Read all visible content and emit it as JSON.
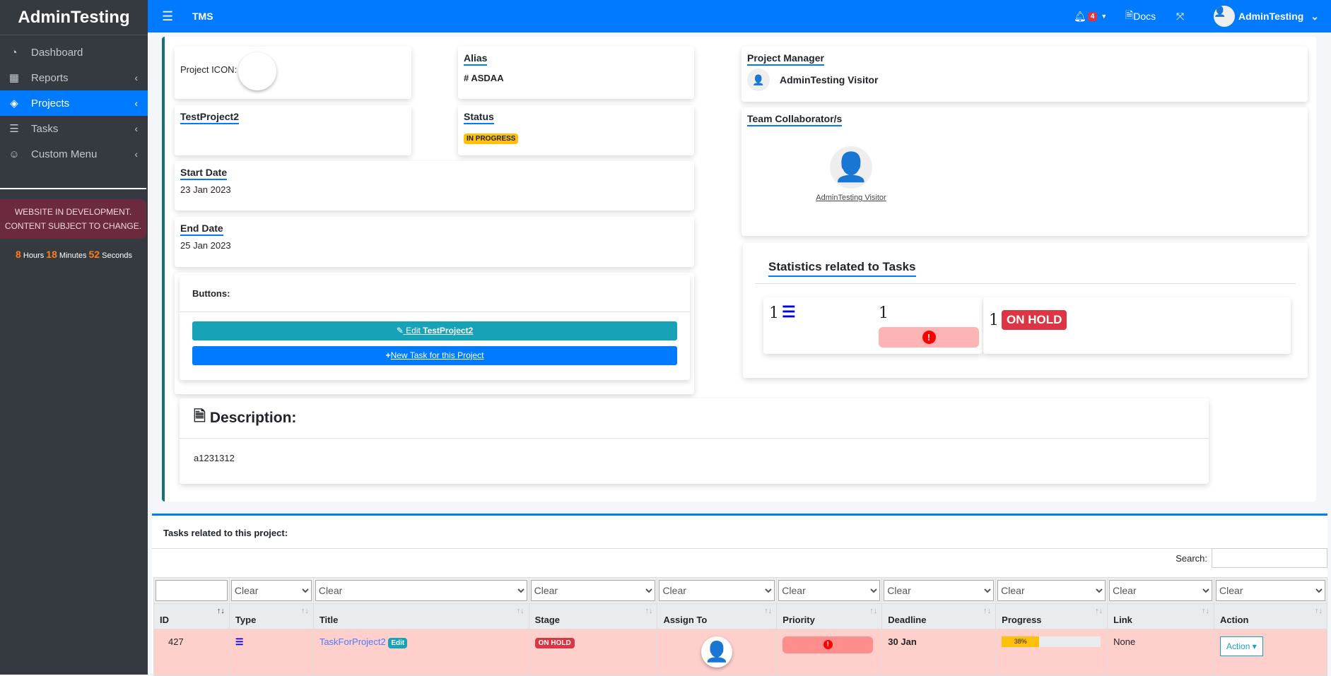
{
  "sidebar": {
    "brand": "AdminTesting",
    "items": [
      {
        "label": "Dashboard",
        "icon": "tachometer-icon"
      },
      {
        "label": "Reports",
        "icon": "table-icon"
      },
      {
        "label": "Projects",
        "icon": "layers-icon",
        "active": true
      },
      {
        "label": "Tasks",
        "icon": "tasks-icon"
      },
      {
        "label": "Custom Menu",
        "icon": "smile-icon"
      }
    ],
    "notice": "WEBSITE IN DEVELOPMENT. CONTENT SUBJECT TO CHANGE.",
    "timer": {
      "hours": "8",
      "hours_label": "Hours",
      "minutes": "18",
      "minutes_label": "Minutes",
      "seconds": "52",
      "seconds_label": "Seconds"
    }
  },
  "header": {
    "title": "TMS",
    "notifications": "4",
    "docs": "Docs",
    "user": "AdminTesting"
  },
  "project": {
    "icon_label": "Project ICON:",
    "name": "TestProject2",
    "alias_label": "Alias",
    "alias": "# ASDAA",
    "status_label": "Status",
    "status": "IN PROGRESS",
    "start_label": "Start Date",
    "start": "23 Jan 2023",
    "end_label": "End Date",
    "end": "25 Jan 2023",
    "buttons_label": "Buttons:",
    "edit_prefix": " Edit ",
    "edit_name": "TestProject2",
    "new_task": "New Task for this Project",
    "description_label": "Description:",
    "description": "a1231312",
    "manager_label": "Project Manager",
    "manager": "AdminTesting Visitor",
    "team_label": "Team Collaborator/s",
    "team": [
      "AdminTesting Visitor"
    ]
  },
  "stats": {
    "title": "Statistics related to Tasks",
    "total": "1",
    "high_priority": "1",
    "on_hold_count": "1",
    "on_hold": "ON HOLD"
  },
  "tasks": {
    "title": "Tasks related to this project:",
    "search_label": "Search:",
    "filter_option": "Clear",
    "columns": [
      "ID",
      "Type",
      "Title",
      "Stage",
      "Assign To",
      "Priority",
      "Deadline",
      "Progress",
      "Link",
      "Action"
    ],
    "rows": [
      {
        "id": "427",
        "title": "TaskForProject2",
        "edit": "Edit",
        "stage": "ON HOLD",
        "deadline": "30 Jan",
        "progress": 38,
        "progress_label": "38%",
        "link": "None",
        "action": "Action"
      }
    ]
  },
  "colors": {
    "primary": "#007bff",
    "danger": "#dc3545",
    "warning": "#ffc107",
    "sidebar": "#343a40"
  }
}
